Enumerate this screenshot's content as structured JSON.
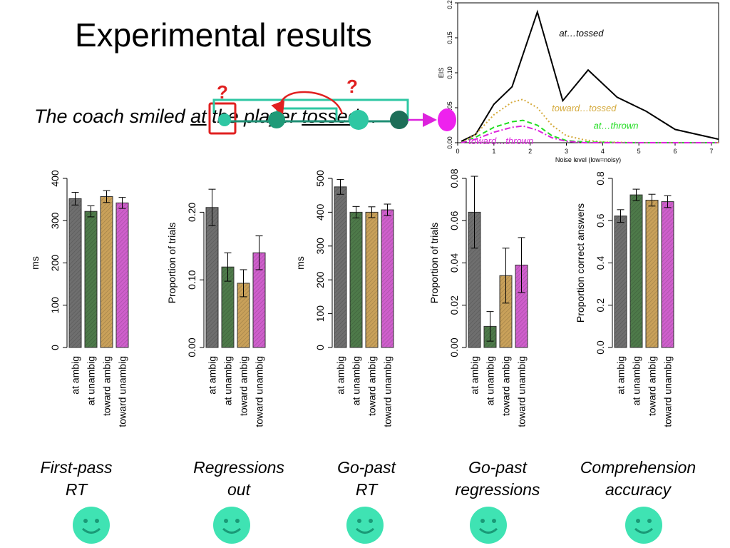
{
  "slide": {
    "title": "Experimental results",
    "sentence": {
      "part1": "The coach smiled ",
      "word_at": "at",
      "part2": " the player ",
      "word_tossed": "tossed",
      "part3": "…"
    },
    "question_marks": [
      "?",
      "?"
    ]
  },
  "captions": [
    {
      "line1": "First-pass",
      "line2": "RT"
    },
    {
      "line1": "Regressions",
      "line2": "out"
    },
    {
      "line1": "Go-past",
      "line2": "RT"
    },
    {
      "line1": "Go-past",
      "line2": "regressions"
    },
    {
      "line1": "Comprehension",
      "line2": "accuracy"
    }
  ],
  "colors": {
    "gray": "#6f6f6f",
    "green": "#4e7a4a",
    "tan": "#c9a15a",
    "magenta": "#cf5fcc",
    "teal": "#2fc7a3",
    "red": "#e02020",
    "smiley": "#3fe3b3"
  },
  "chart_data": [
    {
      "type": "line",
      "xlabel": "Noise level (low=noisy)",
      "ylabel": "EIS",
      "xlim": [
        0,
        7.2
      ],
      "ylim": [
        0,
        0.2
      ],
      "xticks": [
        0,
        1,
        2,
        3,
        4,
        5,
        6,
        7
      ],
      "yticks": [
        0.0,
        0.05,
        0.1,
        0.15,
        0.2
      ],
      "ytick_labels": [
        "0.00",
        "0.05",
        "0.10",
        "0.15",
        "0.20"
      ],
      "series": [
        {
          "name": "at…tossed",
          "color": "#000000",
          "style": "solid",
          "x": [
            0.1,
            0.5,
            1.0,
            1.5,
            2.2,
            2.9,
            3.6,
            4.4,
            5.2,
            6.0,
            7.2
          ],
          "y": [
            0.002,
            0.012,
            0.055,
            0.08,
            0.187,
            0.06,
            0.104,
            0.065,
            0.045,
            0.019,
            0.005
          ]
        },
        {
          "name": "toward…tossed",
          "color": "#d4a93a",
          "style": "dotted",
          "x": [
            0.1,
            0.5,
            1.0,
            1.5,
            1.8,
            2.2,
            2.6,
            3.0,
            3.5,
            4.0,
            5.0,
            6.0,
            7.2
          ],
          "y": [
            0.0,
            0.012,
            0.04,
            0.058,
            0.062,
            0.05,
            0.025,
            0.01,
            0.004,
            0.001,
            0.0,
            0.0,
            0.0
          ]
        },
        {
          "name": "at…thrown",
          "color": "#22dd22",
          "style": "dashed",
          "x": [
            0.1,
            0.5,
            1.0,
            1.5,
            1.8,
            2.2,
            2.6,
            3.0,
            3.5,
            4.5,
            5.5,
            7.2
          ],
          "y": [
            0.0,
            0.008,
            0.022,
            0.03,
            0.032,
            0.025,
            0.01,
            0.003,
            0.001,
            0.0,
            0.0,
            0.0
          ]
        },
        {
          "name": "toward…thrown",
          "color": "#dd22dd",
          "style": "dashdot",
          "x": [
            0.1,
            0.5,
            1.0,
            1.5,
            1.8,
            2.2,
            2.6,
            3.0,
            3.5,
            4.5,
            5.5,
            7.2
          ],
          "y": [
            0.0,
            0.005,
            0.015,
            0.022,
            0.024,
            0.018,
            0.007,
            0.002,
            0.0,
            0.0,
            0.0,
            0.0
          ]
        }
      ]
    },
    {
      "type": "bar",
      "ylabel": "ms",
      "ylim": [
        0,
        400
      ],
      "yticks": [
        0,
        100,
        200,
        300,
        400
      ],
      "ytick_labels": [
        "0",
        "100",
        "200",
        "300",
        "400"
      ],
      "categories": [
        "at ambig",
        "at unambig",
        "toward ambig",
        "toward unambig"
      ],
      "values": [
        352,
        322,
        357,
        342
      ],
      "errors": [
        15,
        13,
        14,
        13
      ]
    },
    {
      "type": "bar",
      "ylabel": "Proportion of trials",
      "ylim": [
        0,
        0.25
      ],
      "yticks": [
        0.0,
        0.1,
        0.2
      ],
      "ytick_labels": [
        "0.00",
        "0.10",
        "0.20"
      ],
      "categories": [
        "at ambig",
        "at unambig",
        "toward ambig",
        "toward unambig"
      ],
      "values": [
        0.207,
        0.119,
        0.095,
        0.14
      ],
      "errors": [
        0.027,
        0.021,
        0.02,
        0.025
      ]
    },
    {
      "type": "bar",
      "ylabel": "ms",
      "ylim": [
        0,
        500
      ],
      "yticks": [
        0,
        100,
        200,
        300,
        400,
        500
      ],
      "ytick_labels": [
        "0",
        "100",
        "200",
        "300",
        "400",
        "500"
      ],
      "categories": [
        "at ambig",
        "at unambig",
        "toward ambig",
        "toward unambig"
      ],
      "values": [
        475,
        400,
        400,
        407
      ],
      "errors": [
        22,
        17,
        16,
        17
      ]
    },
    {
      "type": "bar",
      "ylabel": "Proportion of trials",
      "ylim": [
        0,
        0.08
      ],
      "yticks": [
        0.0,
        0.02,
        0.04,
        0.06,
        0.08
      ],
      "ytick_labels": [
        "0.00",
        "0.02",
        "0.04",
        "0.06",
        "0.08"
      ],
      "categories": [
        "at ambig",
        "at unambig",
        "toward ambig",
        "toward unambig"
      ],
      "values": [
        0.064,
        0.01,
        0.034,
        0.039
      ],
      "errors": [
        0.017,
        0.007,
        0.013,
        0.013
      ]
    },
    {
      "type": "bar",
      "ylabel": "Proportion correct answers",
      "ylim": [
        0,
        0.8
      ],
      "yticks": [
        0.0,
        0.2,
        0.4,
        0.6,
        0.8
      ],
      "ytick_labels": [
        "0.0",
        "0.2",
        "0.4",
        "0.6",
        "0.8"
      ],
      "categories": [
        "at ambig",
        "at unambig",
        "toward ambig",
        "toward unambig"
      ],
      "values": [
        0.622,
        0.722,
        0.697,
        0.69
      ],
      "errors": [
        0.03,
        0.027,
        0.028,
        0.028
      ]
    }
  ]
}
